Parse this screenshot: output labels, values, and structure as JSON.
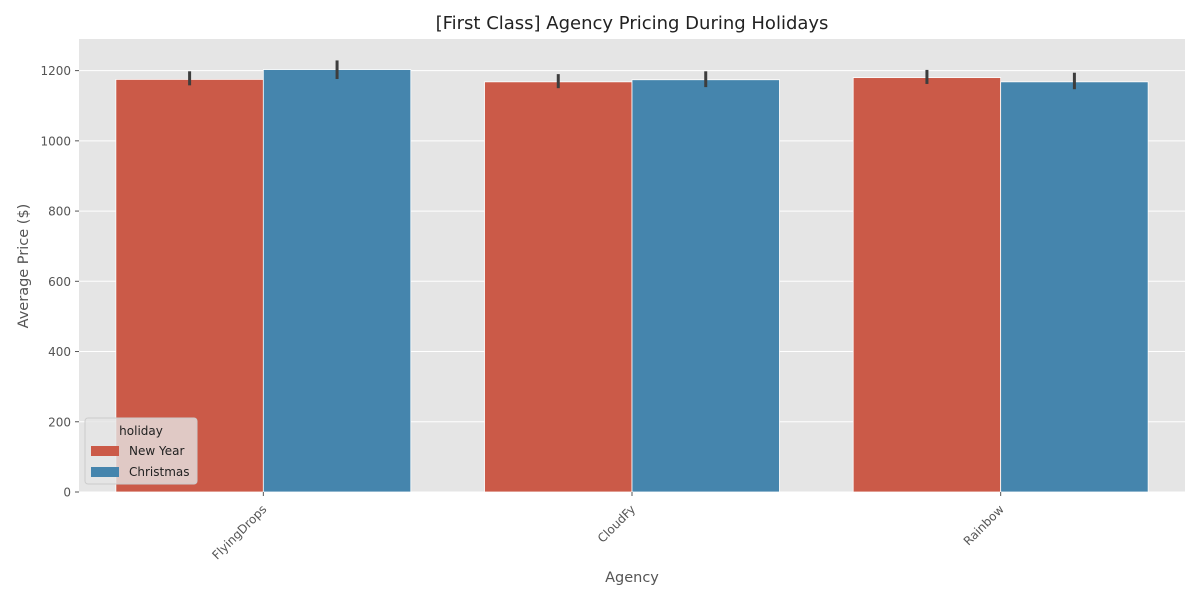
{
  "chart_data": {
    "type": "bar",
    "title": "[First Class] Agency Pricing During Holidays",
    "xlabel": "Agency",
    "ylabel": "Average Price ($)",
    "categories": [
      "FlyingDrops",
      "CloudFy",
      "Rainbow"
    ],
    "series": [
      {
        "name": "New Year",
        "values": [
          1175,
          1168,
          1180
        ],
        "ci_low": [
          1158,
          1150,
          1162
        ],
        "ci_high": [
          1198,
          1190,
          1202
        ],
        "color": "#cb5a48"
      },
      {
        "name": "Christmas",
        "values": [
          1203,
          1174,
          1168
        ],
        "ci_low": [
          1176,
          1153,
          1147
        ],
        "ci_high": [
          1229,
          1198,
          1194
        ],
        "color": "#4585ad"
      }
    ],
    "ylim": [
      0,
      1290
    ],
    "yticks": [
      0,
      200,
      400,
      600,
      800,
      1000,
      1200
    ],
    "grid": true,
    "legend": {
      "title": "holiday",
      "position": "lower-left"
    },
    "style": {
      "background": "#e5e5e5",
      "grid_color": "#ffffff",
      "errorbar_color": "#3d3d3d"
    }
  }
}
